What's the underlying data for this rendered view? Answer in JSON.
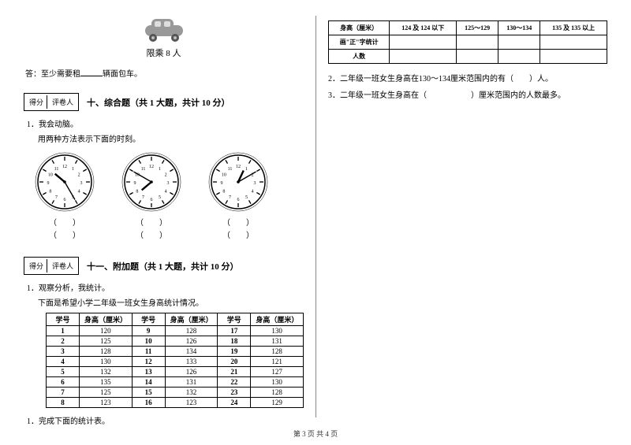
{
  "footer": "第 3 页 共 4 页",
  "left": {
    "car_caption": "限乘 8 人",
    "answer_prefix": "答：至少需要租",
    "answer_suffix": "辆面包车。",
    "score_labels": [
      "得分",
      "评卷人"
    ],
    "section10_title": "十、综合题（共 1 大题，共计 10 分）",
    "q10_1": "1．我会动脑。",
    "q10_1b": "用两种方法表示下面的时刻。",
    "clocks": [
      {
        "hour_angle": 310,
        "min_angle": 150
      },
      {
        "hour_angle": 230,
        "min_angle": 300
      },
      {
        "hour_angle": 25,
        "min_angle": 60
      }
    ],
    "clock_label": "（　　）",
    "section11_title": "十一、附加题（共 1 大题，共计 10 分）",
    "q11_1": "1．观察分析，我统计。",
    "q11_1b": "下面是希望小学二年级一班女生身高统计情况。",
    "table_headers": [
      "学号",
      "身高（厘米）"
    ],
    "table_data": [
      [
        [
          "1",
          "120"
        ],
        [
          "9",
          "128"
        ],
        [
          "17",
          "130"
        ]
      ],
      [
        [
          "2",
          "125"
        ],
        [
          "10",
          "126"
        ],
        [
          "18",
          "131"
        ]
      ],
      [
        [
          "3",
          "128"
        ],
        [
          "11",
          "134"
        ],
        [
          "19",
          "128"
        ]
      ],
      [
        [
          "4",
          "130"
        ],
        [
          "12",
          "133"
        ],
        [
          "20",
          "121"
        ]
      ],
      [
        [
          "5",
          "132"
        ],
        [
          "13",
          "126"
        ],
        [
          "21",
          "127"
        ]
      ],
      [
        [
          "6",
          "135"
        ],
        [
          "14",
          "131"
        ],
        [
          "22",
          "130"
        ]
      ],
      [
        [
          "7",
          "125"
        ],
        [
          "15",
          "132"
        ],
        [
          "23",
          "128"
        ]
      ],
      [
        [
          "8",
          "123"
        ],
        [
          "16",
          "123"
        ],
        [
          "24",
          "129"
        ]
      ]
    ],
    "q11_2": "1．完成下面的统计表。"
  },
  "right": {
    "summary_headers": [
      "身高（厘米）",
      "124 及 124 以下",
      "125～129",
      "130～134",
      "135 及 135 以上"
    ],
    "summary_rows": [
      "画\"正\"字统计",
      "人数"
    ],
    "fill2": "2．二年级一班女生身高在130～134厘米范围内的有（　　）人。",
    "fill3_a": "3．二年级一班女生身高在（",
    "fill3_b": "）厘米范围内的人数最多。"
  }
}
